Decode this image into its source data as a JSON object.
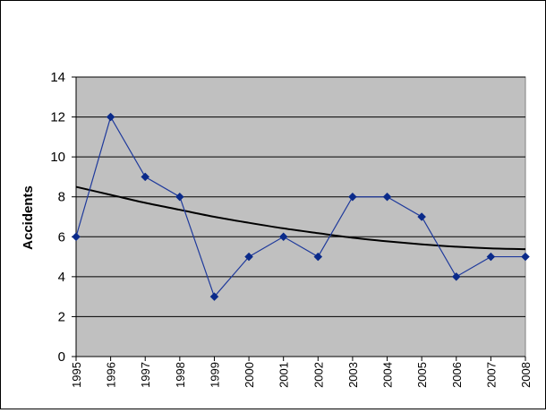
{
  "colors": {
    "plot_background": "#c0c0c0",
    "series_line": "#1f3a9c",
    "series_marker": "#0a2a8a",
    "trendline": "#000000",
    "gridline": "#000000"
  },
  "chart_data": {
    "type": "line",
    "title": "",
    "xlabel": "",
    "ylabel": "Accidents",
    "categories": [
      "1995",
      "1996",
      "1997",
      "1998",
      "1999",
      "2000",
      "2001",
      "2002",
      "2003",
      "2004",
      "2005",
      "2006",
      "2007",
      "2008"
    ],
    "series": [
      {
        "values": [
          6,
          12,
          9,
          8,
          3,
          5,
          6,
          5,
          8,
          8,
          7,
          4,
          5,
          5
        ],
        "marker": "diamond"
      }
    ],
    "trendline": {
      "type": "polynomial",
      "values": [
        8.5,
        8.1,
        7.7,
        7.35,
        7.0,
        6.7,
        6.42,
        6.18,
        5.95,
        5.77,
        5.62,
        5.5,
        5.42,
        5.38
      ]
    },
    "ylim": [
      0,
      14
    ],
    "yticks": [
      0,
      2,
      4,
      6,
      8,
      10,
      12,
      14
    ],
    "grid": true,
    "legend": "none"
  }
}
